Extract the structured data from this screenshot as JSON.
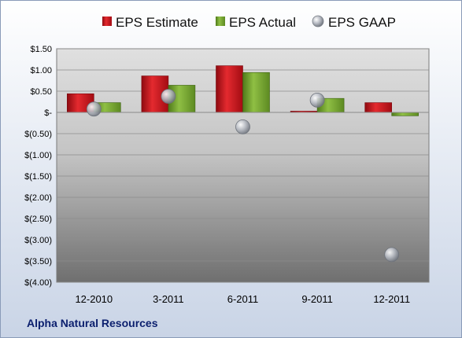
{
  "chart_data": {
    "type": "bar",
    "company": "Alpha Natural Resources",
    "categories": [
      "12-2010",
      "3-2011",
      "6-2011",
      "9-2011",
      "12-2011"
    ],
    "series": [
      {
        "name": "EPS Estimate",
        "type": "bar",
        "color": "#c0101a",
        "values": [
          0.44,
          0.86,
          1.1,
          0.03,
          0.23
        ]
      },
      {
        "name": "EPS Actual",
        "type": "bar",
        "color": "#6f9a2a",
        "values": [
          0.23,
          0.64,
          0.94,
          0.33,
          -0.08
        ]
      },
      {
        "name": "EPS GAAP",
        "type": "scatter",
        "color": "#9ea3ab",
        "values": [
          0.08,
          0.38,
          -0.34,
          0.29,
          -3.35
        ]
      }
    ],
    "yticks": [
      "$1.50",
      "$1.00",
      "$0.50",
      "$-",
      "$(0.50)",
      "$(1.00)",
      "$(1.50)",
      "$(2.00)",
      "$(2.50)",
      "$(3.00)",
      "$(3.50)",
      "$(4.00)"
    ],
    "ylim": [
      -4.0,
      1.5
    ],
    "ystep": 0.5,
    "grid": true,
    "legend_position": "top"
  }
}
